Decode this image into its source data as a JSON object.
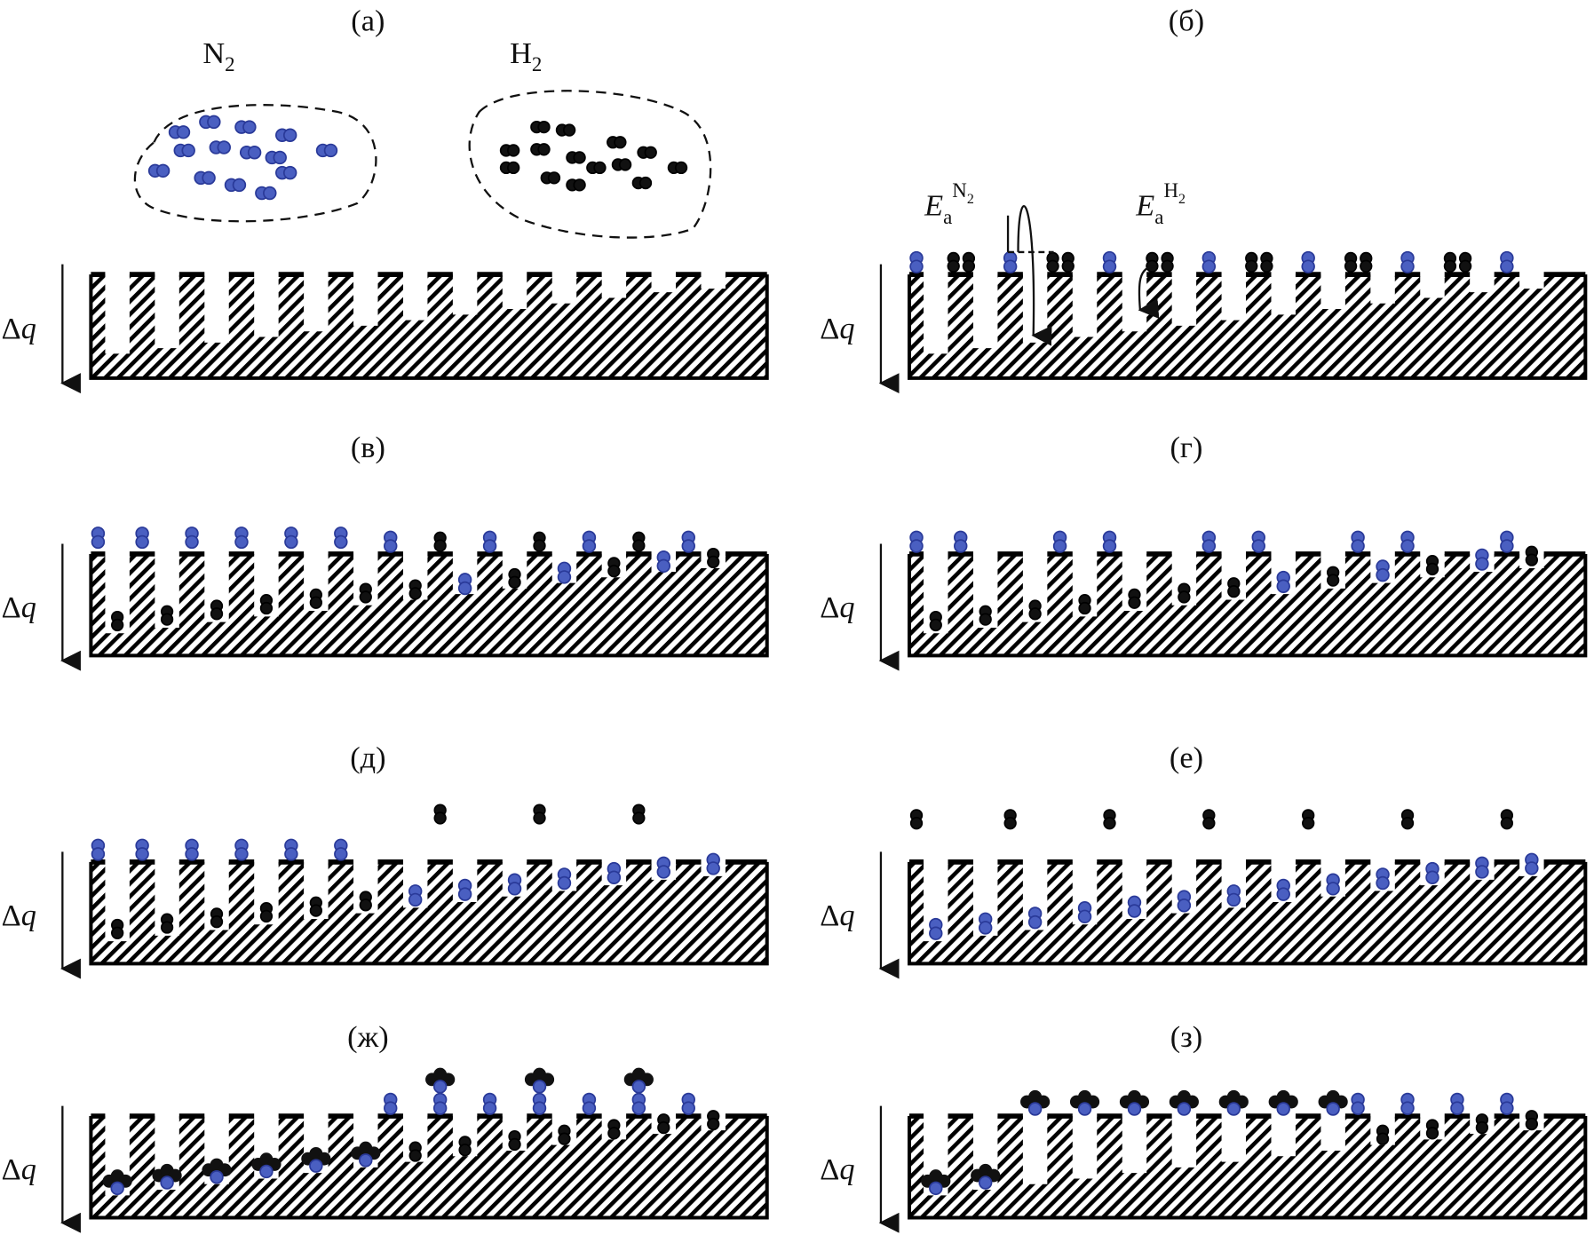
{
  "panels": [
    {
      "label": "(а)"
    },
    {
      "label": "(б)"
    },
    {
      "label": "(в)"
    },
    {
      "label": "(г)"
    },
    {
      "label": "(д)"
    },
    {
      "label": "(е)"
    },
    {
      "label": "(ж)"
    },
    {
      "label": "(з)"
    }
  ],
  "axis_label": "Δq",
  "gas": {
    "n2": "N",
    "n2_sub": "2",
    "h2": "H",
    "h2_sub": "2"
  },
  "energy": {
    "e": "E",
    "sub": "a",
    "n2_sup": "N",
    "n2_sup_sub": "2",
    "h2_sup": "H",
    "h2_sup_sub": "2"
  },
  "colors": {
    "n2_molecule": "#4a5fc1",
    "h2_molecule": "#111111",
    "substrate_hatch": "#000000"
  },
  "icons": [
    "down-arrow",
    "n2-molecule",
    "h2-molecule",
    "nh3-molecule",
    "hatched-substrate"
  ]
}
